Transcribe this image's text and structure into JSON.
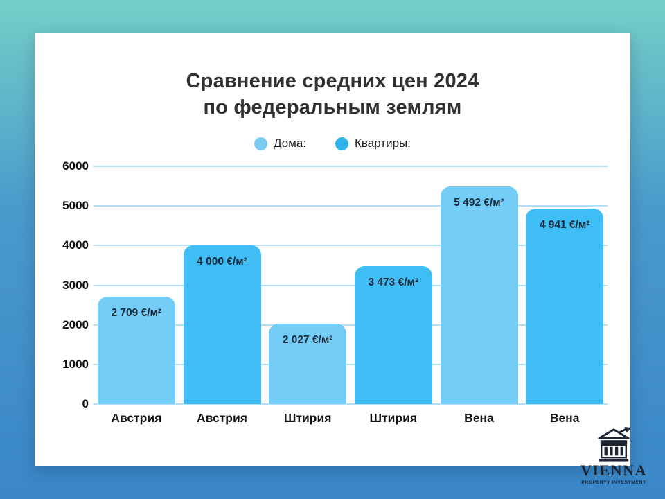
{
  "page": {
    "background_gradient": {
      "top": "#74cfc7",
      "middle": "#4a9acc",
      "bottom": "#3a86c8"
    },
    "card_color": "#ffffff"
  },
  "header": {
    "title_line1": "Сравнение средних цен 2024",
    "title_line2": "по федеральным землям"
  },
  "chart_data": {
    "type": "bar",
    "title": "Сравнение средних цен 2024 по федеральным землям",
    "categories": [
      "Австрия",
      "Австрия",
      "Штирия",
      "Штирия",
      "Вена",
      "Вена"
    ],
    "bars": [
      {
        "category": "Австрия",
        "series": "Дома",
        "value": 2709,
        "label": "2 709 €/м²"
      },
      {
        "category": "Австрия",
        "series": "Квартиры",
        "value": 4000,
        "label": "4 000 €/м²"
      },
      {
        "category": "Штирия",
        "series": "Дома",
        "value": 2027,
        "label": "2 027 €/м²"
      },
      {
        "category": "Штирия",
        "series": "Квартиры",
        "value": 3473,
        "label": "3 473 €/м²"
      },
      {
        "category": "Вена",
        "series": "Дома",
        "value": 5492,
        "label": "5 492 €/м²"
      },
      {
        "category": "Вена",
        "series": "Квартиры",
        "value": 4941,
        "label": "4 941 €/м²"
      }
    ],
    "legend": [
      {
        "label": "Дома:",
        "color": "#79ccf2"
      },
      {
        "label": "Квартиры:",
        "color": "#2fb3eb"
      }
    ],
    "colors": {
      "Дома": "#73cdf7",
      "Квартиры": "#3fbdf5"
    },
    "ylim": [
      0,
      6000
    ],
    "yticks": [
      "0",
      "1000",
      "2000",
      "3000",
      "4000",
      "5000",
      "6000"
    ],
    "grid": true,
    "gridline_color": "#b3def5",
    "legend_position": "top-center",
    "unit": "€/м²"
  },
  "logo": {
    "name": "VIENNA",
    "tagline": "PROPERTY INVESTMENT",
    "icon": "classical-building-growth-arrow",
    "color": "#1b2433"
  }
}
